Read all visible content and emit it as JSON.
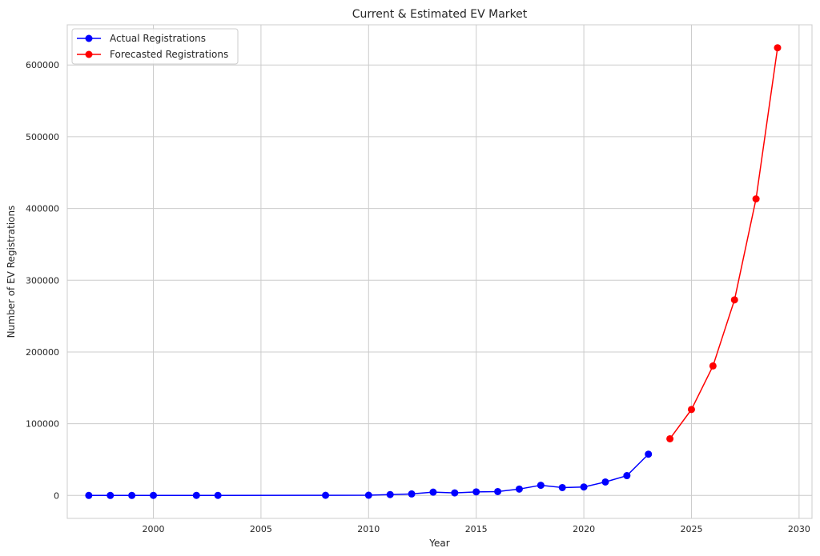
{
  "chart_data": {
    "type": "line",
    "title": "Current & Estimated EV Market",
    "xlabel": "Year",
    "ylabel": "Number of EV Registrations",
    "xlim": [
      1996.0,
      2030.6
    ],
    "ylim": [
      -32000,
      656000
    ],
    "xticks": [
      2000,
      2005,
      2010,
      2015,
      2020,
      2025,
      2030
    ],
    "yticks": [
      0,
      100000,
      200000,
      300000,
      400000,
      500000,
      600000
    ],
    "grid": true,
    "legend_position": "top-left",
    "series": [
      {
        "name": "Actual Registrations",
        "color": "#0000ff",
        "x": [
          1997,
          1998,
          1999,
          2000,
          2002,
          2003,
          2008,
          2010,
          2011,
          2012,
          2013,
          2014,
          2015,
          2016,
          2017,
          2018,
          2019,
          2020,
          2021,
          2022,
          2023
        ],
        "y": [
          0,
          0,
          0,
          100,
          100,
          100,
          200,
          300,
          1200,
          2100,
          4600,
          3600,
          5000,
          5400,
          8900,
          14200,
          11000,
          11800,
          18800,
          27600,
          57500
        ]
      },
      {
        "name": "Forecasted Registrations",
        "color": "#ff0000",
        "x": [
          2024,
          2025,
          2026,
          2027,
          2028,
          2029
        ],
        "y": [
          79000,
          119800,
          180500,
          272600,
          413400,
          624000
        ]
      }
    ]
  }
}
